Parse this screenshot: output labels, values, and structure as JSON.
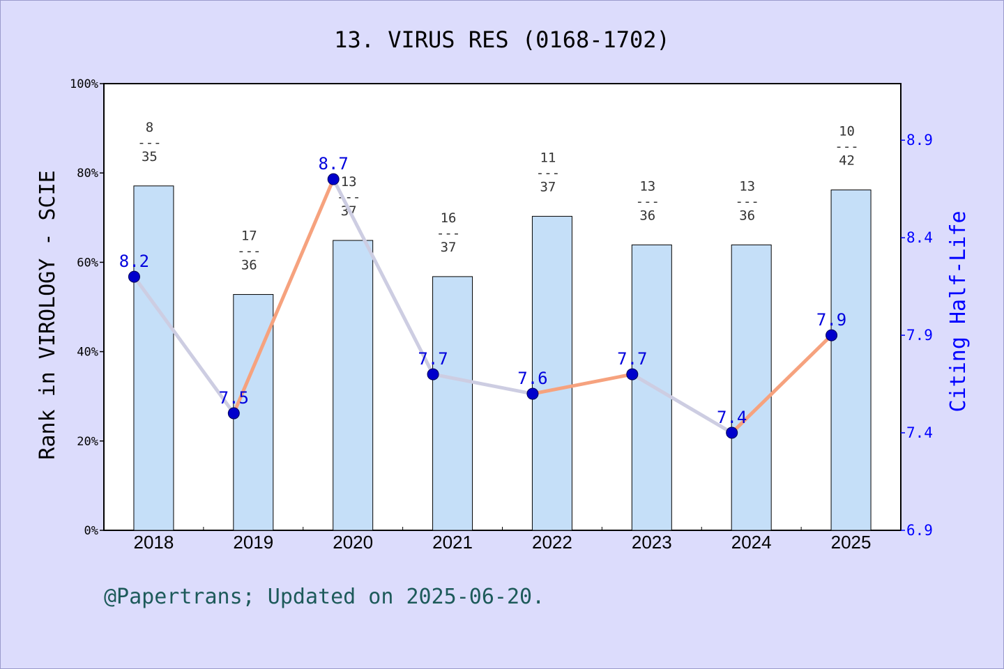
{
  "chart_data": {
    "type": "bar",
    "title": "13. VIRUS RES (0168-1702)",
    "categories": [
      "2018",
      "2019",
      "2020",
      "2021",
      "2022",
      "2023",
      "2024",
      "2025"
    ],
    "series": [
      {
        "axis": "left",
        "type": "bar",
        "values": [
          77.1,
          52.8,
          64.9,
          56.8,
          70.3,
          63.9,
          63.9,
          76.2
        ],
        "rank_labels": [
          {
            "rank": "8",
            "sep": "---",
            "total": "35"
          },
          {
            "rank": "17",
            "sep": "---",
            "total": "36"
          },
          {
            "rank": "13",
            "sep": "---",
            "total": "37"
          },
          {
            "rank": "16",
            "sep": "---",
            "total": "37"
          },
          {
            "rank": "11",
            "sep": "---",
            "total": "37"
          },
          {
            "rank": "13",
            "sep": "---",
            "total": "36"
          },
          {
            "rank": "13",
            "sep": "---",
            "total": "36"
          },
          {
            "rank": "10",
            "sep": "---",
            "total": "42"
          }
        ]
      },
      {
        "axis": "right",
        "type": "line",
        "values": [
          8.2,
          7.5,
          8.7,
          7.7,
          7.6,
          7.7,
          7.4,
          7.9
        ]
      }
    ],
    "ylabel": "Rank in VIROLOGY - SCIE",
    "y2label": "Citing Half-Life",
    "ylim": [
      0,
      100
    ],
    "y2lim": [
      6.9,
      9.19
    ],
    "yticks": [
      "0%",
      "20%",
      "40%",
      "60%",
      "80%",
      "100%"
    ],
    "y2ticks": [
      "6.9",
      "7.4",
      "7.9",
      "8.4",
      "8.9"
    ],
    "grid": false,
    "legend": "none"
  },
  "footer": {
    "text": "@Papertrans; Updated on 2025-06-20."
  },
  "colors": {
    "background": "#dcdcfc",
    "plot_area": "#ffffff",
    "bar_fill": "#c5dff8",
    "line_rise": "#f6a27e",
    "line_fall": "#cdcde2",
    "marker": "#0000cc",
    "half_life_text": "#0000dd",
    "right_axis": "#0000ff",
    "footer": "#1d5a5a"
  }
}
